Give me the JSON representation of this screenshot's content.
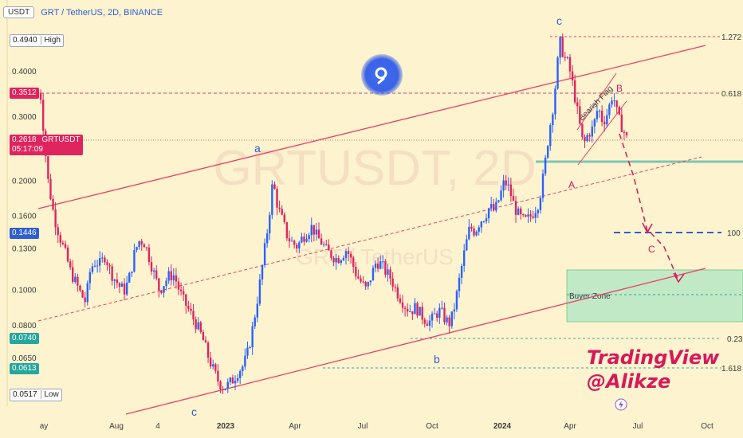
{
  "header": {
    "currency": "USDT",
    "title": "GRT / TetherUS, 2D, BINANCE"
  },
  "watermark": {
    "line1": "GRTUSDT, 2D",
    "line2": "GRT / TetherUS"
  },
  "brand": {
    "name": "TradingView",
    "handle": "@Alikze"
  },
  "price_tags": {
    "high": {
      "value": "0.4940",
      "label": "High"
    },
    "marker": {
      "value": "0.3512"
    },
    "current": {
      "value": "0.2618",
      "symbol": "GRTUSDT",
      "countdown": "05:17:09"
    },
    "support": {
      "value": "0.1446"
    },
    "level_a": {
      "value": "0.0740"
    },
    "level_b": {
      "value": "0.0613"
    },
    "low": {
      "value": "0.0517",
      "label": "Low"
    }
  },
  "chart_data": {
    "type": "candlestick",
    "symbol": "GRTUSDT",
    "timeframe": "2D",
    "exchange": "BINANCE",
    "y_scale": "log",
    "y_ticks": [
      0.4,
      0.3,
      0.2,
      0.16,
      0.13,
      0.1,
      0.08,
      0.065
    ],
    "y_tick_labels": [
      "0.4000",
      "0.3000",
      "0.2000",
      "0.1600",
      "0.1300",
      "0.1000",
      "0.0800",
      "0.0650"
    ],
    "x_tick_labels": [
      "ay",
      "Aug",
      "4",
      "2023",
      "Apr",
      "Jul",
      "Oct",
      "2024",
      "Apr",
      "Jul",
      "Oct"
    ],
    "ylim": [
      0.047,
      0.6
    ],
    "series_path": [
      [
        0.0,
        0.35
      ],
      [
        0.03,
        0.34
      ],
      [
        0.06,
        0.26
      ],
      [
        0.1,
        0.2
      ],
      [
        0.16,
        0.16
      ],
      [
        0.22,
        0.14
      ],
      [
        0.28,
        0.125
      ],
      [
        0.33,
        0.112
      ],
      [
        0.38,
        0.105
      ],
      [
        0.43,
        0.098
      ],
      [
        0.48,
        0.093
      ],
      [
        0.53,
        0.115
      ],
      [
        0.58,
        0.12
      ],
      [
        0.63,
        0.118
      ],
      [
        0.68,
        0.125
      ],
      [
        0.73,
        0.113
      ],
      [
        0.78,
        0.107
      ],
      [
        0.83,
        0.102
      ],
      [
        0.88,
        0.1
      ],
      [
        0.93,
        0.11
      ],
      [
        0.98,
        0.128
      ],
      [
        1.03,
        0.138
      ],
      [
        1.08,
        0.135
      ],
      [
        1.13,
        0.122
      ],
      [
        1.18,
        0.11
      ],
      [
        1.23,
        0.1
      ],
      [
        1.28,
        0.105
      ],
      [
        1.33,
        0.11
      ],
      [
        1.38,
        0.11
      ],
      [
        1.43,
        0.1
      ],
      [
        1.48,
        0.093
      ],
      [
        1.53,
        0.088
      ],
      [
        1.58,
        0.083
      ],
      [
        1.63,
        0.078
      ],
      [
        1.68,
        0.072
      ],
      [
        1.73,
        0.065
      ],
      [
        1.78,
        0.06
      ],
      [
        1.83,
        0.056
      ],
      [
        1.88,
        0.054
      ],
      [
        1.93,
        0.055
      ],
      [
        1.98,
        0.057
      ],
      [
        2.03,
        0.06
      ],
      [
        2.08,
        0.062
      ],
      [
        2.13,
        0.068
      ],
      [
        2.18,
        0.08
      ],
      [
        2.23,
        0.097
      ],
      [
        2.28,
        0.12
      ],
      [
        2.33,
        0.15
      ],
      [
        2.38,
        0.2
      ],
      [
        2.43,
        0.17
      ],
      [
        2.48,
        0.155
      ],
      [
        2.53,
        0.14
      ],
      [
        2.58,
        0.135
      ],
      [
        2.63,
        0.132
      ],
      [
        2.68,
        0.14
      ],
      [
        2.73,
        0.145
      ],
      [
        2.78,
        0.15
      ],
      [
        2.83,
        0.14
      ],
      [
        2.88,
        0.135
      ],
      [
        2.93,
        0.128
      ],
      [
        2.98,
        0.125
      ],
      [
        3.03,
        0.122
      ],
      [
        3.08,
        0.125
      ],
      [
        3.13,
        0.13
      ],
      [
        3.18,
        0.12
      ],
      [
        3.23,
        0.11
      ],
      [
        3.28,
        0.105
      ],
      [
        3.33,
        0.1
      ],
      [
        3.38,
        0.11
      ],
      [
        3.43,
        0.12
      ],
      [
        3.48,
        0.118
      ],
      [
        3.53,
        0.112
      ],
      [
        3.58,
        0.108
      ],
      [
        3.63,
        0.1
      ],
      [
        3.68,
        0.095
      ],
      [
        3.73,
        0.09
      ],
      [
        3.78,
        0.088
      ],
      [
        3.83,
        0.09
      ],
      [
        3.88,
        0.086
      ],
      [
        3.93,
        0.083
      ],
      [
        3.98,
        0.082
      ],
      [
        4.03,
        0.086
      ],
      [
        4.08,
        0.088
      ],
      [
        4.13,
        0.083
      ],
      [
        4.18,
        0.081
      ],
      [
        4.23,
        0.092
      ],
      [
        4.28,
        0.11
      ],
      [
        4.33,
        0.13
      ],
      [
        4.38,
        0.15
      ],
      [
        4.43,
        0.145
      ],
      [
        4.48,
        0.155
      ],
      [
        4.53,
        0.16
      ],
      [
        4.58,
        0.17
      ],
      [
        4.63,
        0.165
      ],
      [
        4.68,
        0.18
      ],
      [
        4.73,
        0.2
      ],
      [
        4.78,
        0.19
      ],
      [
        4.83,
        0.17
      ],
      [
        4.88,
        0.16
      ],
      [
        4.93,
        0.155
      ],
      [
        4.98,
        0.158
      ],
      [
        5.03,
        0.165
      ],
      [
        5.08,
        0.175
      ],
      [
        5.13,
        0.21
      ],
      [
        5.18,
        0.27
      ],
      [
        5.23,
        0.33
      ],
      [
        5.28,
        0.45
      ],
      [
        5.3,
        0.49
      ],
      [
        5.33,
        0.44
      ],
      [
        5.38,
        0.42
      ],
      [
        5.43,
        0.36
      ],
      [
        5.48,
        0.3
      ],
      [
        5.53,
        0.25
      ],
      [
        5.58,
        0.27
      ],
      [
        5.63,
        0.28
      ],
      [
        5.68,
        0.32
      ],
      [
        5.73,
        0.29
      ],
      [
        5.78,
        0.31
      ],
      [
        5.83,
        0.35
      ],
      [
        5.88,
        0.3
      ],
      [
        5.93,
        0.28
      ],
      [
        5.97,
        0.2618
      ]
    ],
    "levels": [
      {
        "label": "1.272",
        "price": 0.494
      },
      {
        "label": "0.618",
        "price": 0.3512
      },
      {
        "label": "100",
        "price": 0.1446
      },
      {
        "label": "0.23",
        "price": 0.074
      },
      {
        "label": "1.618",
        "price": 0.0613
      }
    ],
    "wave_labels": [
      "c",
      "a",
      "b",
      "c",
      "A",
      "B",
      "C"
    ],
    "annotations": {
      "pattern": "Bearish Flag",
      "zone": "Buyer Zone"
    },
    "colors": {
      "up": "#2962ff",
      "down": "#e0245e",
      "trend": "#ea3f6a",
      "zone": "#b7e6c4",
      "support": "#2f5fd0",
      "teal": "#2aa8a0"
    }
  }
}
